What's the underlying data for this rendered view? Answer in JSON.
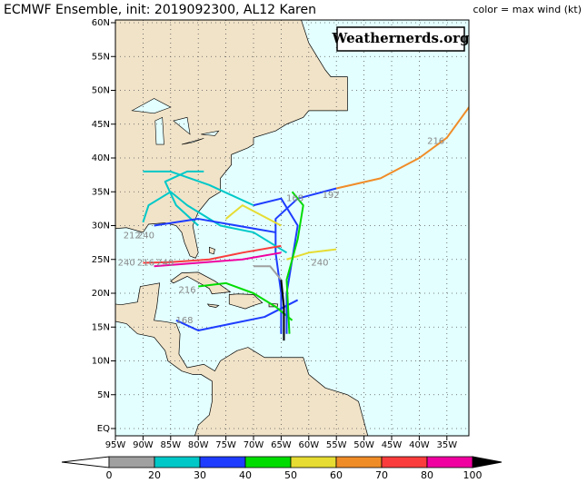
{
  "header": {
    "title": "ECMWF Ensemble, init: 2019092300, AL12 Karen",
    "color_note": "color = max wind (kt)"
  },
  "watermark": "Weathernerds.org",
  "map": {
    "xticks": [
      {
        "value": -95,
        "label": "95W"
      },
      {
        "value": -90,
        "label": "90W"
      },
      {
        "value": -85,
        "label": "85W"
      },
      {
        "value": -80,
        "label": "80W"
      },
      {
        "value": -75,
        "label": "75W"
      },
      {
        "value": -70,
        "label": "70W"
      },
      {
        "value": -65,
        "label": "65W"
      },
      {
        "value": -60,
        "label": "60W"
      },
      {
        "value": -55,
        "label": "55W"
      },
      {
        "value": -50,
        "label": "50W"
      },
      {
        "value": -45,
        "label": "45W"
      },
      {
        "value": -40,
        "label": "40W"
      },
      {
        "value": -35,
        "label": "35W"
      }
    ],
    "yticks": [
      {
        "value": 0,
        "label": "EQ"
      },
      {
        "value": 5,
        "label": "5N"
      },
      {
        "value": 10,
        "label": "10N"
      },
      {
        "value": 15,
        "label": "15N"
      },
      {
        "value": 20,
        "label": "20N"
      },
      {
        "value": 25,
        "label": "25N"
      },
      {
        "value": 30,
        "label": "30N"
      },
      {
        "value": 35,
        "label": "35N"
      },
      {
        "value": 40,
        "label": "40N"
      },
      {
        "value": 45,
        "label": "45N"
      },
      {
        "value": 50,
        "label": "50N"
      },
      {
        "value": 55,
        "label": "55N"
      },
      {
        "value": 60,
        "label": "60N"
      }
    ],
    "tracks": [
      {
        "color": "#1e3cff",
        "points": [
          [
            -65,
            14
          ],
          [
            -65,
            20
          ],
          [
            -66,
            26
          ],
          [
            -66,
            31
          ],
          [
            -62,
            34
          ],
          [
            -55,
            35.5
          ]
        ]
      },
      {
        "color": "#f08c28",
        "points": [
          [
            -55,
            35.5
          ],
          [
            -47,
            37
          ],
          [
            -40,
            40
          ],
          [
            -35,
            43
          ],
          [
            -31,
            47.5
          ]
        ]
      },
      {
        "color": "#00c8c8",
        "points": [
          [
            -64,
            26
          ],
          [
            -70,
            29
          ],
          [
            -76,
            30
          ],
          [
            -82,
            33
          ],
          [
            -85,
            35
          ],
          [
            -87,
            34
          ],
          [
            -89,
            33
          ],
          [
            -90,
            30.5
          ]
        ]
      },
      {
        "color": "#00c8c8",
        "points": [
          [
            -80,
            30
          ],
          [
            -84,
            33
          ],
          [
            -86,
            36.5
          ],
          [
            -82,
            38
          ],
          [
            -79,
            38
          ]
        ]
      },
      {
        "color": "#00c8c8",
        "points": [
          [
            -70,
            33
          ],
          [
            -78,
            36
          ],
          [
            -85,
            38
          ],
          [
            -90,
            38
          ]
        ]
      },
      {
        "color": "#fa3c3c",
        "points": [
          [
            -65,
            27
          ],
          [
            -72,
            26
          ],
          [
            -78,
            25
          ],
          [
            -85,
            24.6
          ],
          [
            -90,
            24.5
          ]
        ]
      },
      {
        "color": "#f000a0",
        "points": [
          [
            -65,
            26
          ],
          [
            -72,
            25
          ],
          [
            -80,
            24.5
          ],
          [
            -88,
            24
          ]
        ]
      },
      {
        "color": "#1e3cff",
        "points": [
          [
            -62,
            19
          ],
          [
            -68,
            16.5
          ],
          [
            -74,
            15.5
          ],
          [
            -80,
            14.5
          ],
          [
            -84,
            16
          ]
        ]
      },
      {
        "color": "#00dc00",
        "points": [
          [
            -63,
            16
          ],
          [
            -66,
            18
          ],
          [
            -70,
            20
          ],
          [
            -75,
            21.5
          ],
          [
            -80,
            21
          ]
        ]
      },
      {
        "color": "#e6dc32",
        "points": [
          [
            -64,
            25
          ],
          [
            -60,
            26
          ],
          [
            -55,
            26.5
          ]
        ]
      },
      {
        "color": "#1e3cff",
        "points": [
          [
            -64,
            14
          ],
          [
            -64,
            20
          ],
          [
            -63,
            25
          ],
          [
            -62,
            30
          ],
          [
            -65,
            34
          ],
          [
            -70,
            33
          ]
        ]
      },
      {
        "color": "#00dc00",
        "points": [
          [
            -63.5,
            14
          ],
          [
            -64,
            22
          ],
          [
            -62,
            28
          ],
          [
            -61,
            33
          ],
          [
            -63,
            35
          ]
        ]
      },
      {
        "color": "#000000",
        "points": [
          [
            -64.5,
            13
          ],
          [
            -64.5,
            18
          ],
          [
            -65,
            22
          ]
        ]
      },
      {
        "color": "#e6dc32",
        "points": [
          [
            -65,
            30
          ],
          [
            -72,
            33
          ],
          [
            -75,
            31
          ]
        ]
      },
      {
        "color": "#1e3cff",
        "points": [
          [
            -66,
            29
          ],
          [
            -80,
            31
          ],
          [
            -88,
            30
          ]
        ]
      },
      {
        "color": "#a0a0a0",
        "points": [
          [
            -65,
            22
          ],
          [
            -67,
            24
          ],
          [
            -70,
            24
          ]
        ]
      }
    ],
    "hour_labels": [
      {
        "text": "192",
        "lon": -56,
        "lat": 34.5
      },
      {
        "text": "216",
        "lon": -37,
        "lat": 42.5
      },
      {
        "text": "168",
        "lon": -62.5,
        "lat": 34
      },
      {
        "text": "240",
        "lon": -58,
        "lat": 24.5
      },
      {
        "text": "212",
        "lon": -92,
        "lat": 28.5
      },
      {
        "text": "240",
        "lon": -89.5,
        "lat": 28.5
      },
      {
        "text": "240",
        "lon": -93,
        "lat": 24.5
      },
      {
        "text": "216",
        "lon": -89.5,
        "lat": 24.5
      },
      {
        "text": "240",
        "lon": -86,
        "lat": 24.5
      },
      {
        "text": "168",
        "lon": -82.5,
        "lat": 16
      },
      {
        "text": "216",
        "lon": -82,
        "lat": 20.5
      }
    ]
  },
  "colorbar": {
    "bins": [
      0,
      20,
      30,
      40,
      50,
      60,
      70,
      80,
      100
    ],
    "colors": [
      "#a0a0a0",
      "#00c8c8",
      "#1e3cff",
      "#00dc00",
      "#e6dc32",
      "#f08c28",
      "#fa3c3c",
      "#f000a0"
    ]
  }
}
